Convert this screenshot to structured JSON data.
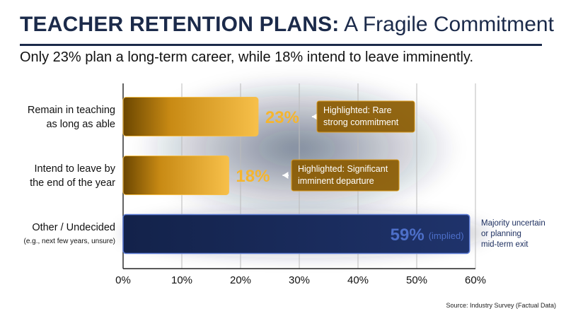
{
  "header": {
    "title_bold": "TEACHER RETENTION PLANS:",
    "title_light": "A Fragile Commitment",
    "subtitle": "Only 23% plan a long-term career, while 18% intend to leave imminently."
  },
  "chart_data": {
    "type": "bar",
    "orientation": "horizontal",
    "categories": [
      {
        "label_lines": [
          "Remain in teaching",
          "as long as able"
        ],
        "sublabel": ""
      },
      {
        "label_lines": [
          "Intend to leave by",
          "the end of the year"
        ],
        "sublabel": ""
      },
      {
        "label_lines": [
          "Other / Undecided"
        ],
        "sublabel": "(e.g., next few years, unsure)"
      }
    ],
    "values": [
      23,
      18,
      59
    ],
    "value_labels": [
      "23%",
      "18%",
      "59%"
    ],
    "value_suffixes": [
      "",
      "",
      "(implied)"
    ],
    "bar_colors": [
      "#f2b632",
      "#f2b632",
      "#1b2d5e"
    ],
    "annotations": [
      {
        "lines": [
          "Highlighted: Rare",
          "strong commitment"
        ]
      },
      {
        "lines": [
          "Highlighted: Significant",
          "imminent departure"
        ]
      },
      {
        "lines": [
          "Majority uncertain",
          "or planning",
          "mid-term exit"
        ]
      }
    ],
    "xlim": [
      0,
      60
    ],
    "xticks": [
      0,
      10,
      20,
      30,
      40,
      50,
      60
    ],
    "xtick_labels": [
      "0%",
      "10%",
      "20%",
      "30%",
      "40%",
      "50%",
      "60%"
    ],
    "grid": true
  },
  "footer": {
    "source": "Source: Industry Survey (Factual Data)"
  },
  "colors": {
    "navy": "#1b2a4a",
    "gold": "#f2b632",
    "annotation_bg": "#8a5a00",
    "deep_blue": "#1b2d5e"
  }
}
